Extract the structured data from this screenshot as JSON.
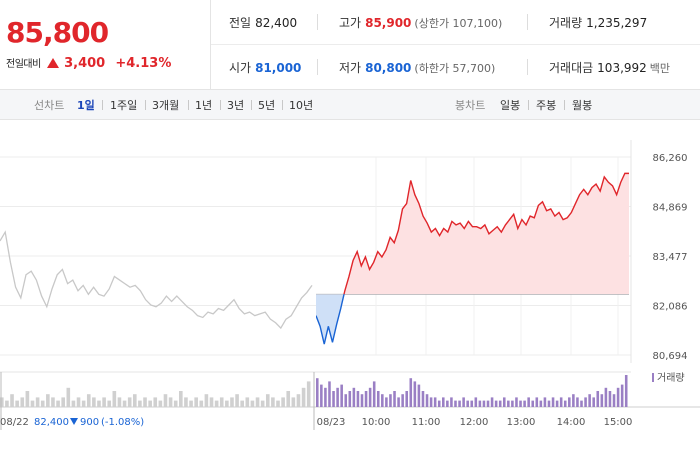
{
  "header": {
    "price": "85,800",
    "change_label": "전일대비",
    "change_value": "3,400",
    "change_pct": "+4.13%"
  },
  "summary": {
    "prev_close": {
      "label": "전일",
      "value": "82,400"
    },
    "high": {
      "label": "고가",
      "value": "85,900",
      "sub": "(상한가 107,100)"
    },
    "volume": {
      "label": "거래량",
      "value": "1,235,297"
    },
    "open": {
      "label": "시가",
      "value": "81,000"
    },
    "low": {
      "label": "저가",
      "value": "80,800",
      "sub": "(하한가 57,700)"
    },
    "amount": {
      "label": "거래대금",
      "value": "103,992",
      "unit": "백만"
    }
  },
  "period_tabs": {
    "line_label": "선차트",
    "line_items": [
      "1일",
      "1주일",
      "3개월",
      "1년",
      "3년",
      "5년",
      "10년"
    ],
    "active": "1일",
    "candle_label": "봉차트",
    "candle_items": [
      "일봉",
      "주봉",
      "월봉"
    ]
  },
  "colors": {
    "up": "#e0262b",
    "down": "#1a64d4",
    "prev_day_line": "#c8c8c8",
    "up_fill": "#fde1e2",
    "down_fill": "#cfe0f7",
    "volume_prev": "#d0d0d0",
    "volume_today": "#9a7fc4"
  },
  "chart_data": {
    "type": "line",
    "yticks": [
      "86,260",
      "84,869",
      "83,477",
      "82,086",
      "80,694"
    ],
    "ylim": [
      80694,
      86260
    ],
    "prev_close": 82400,
    "xticks": [
      "08/23",
      "10:00",
      "11:00",
      "12:00",
      "13:00",
      "14:00",
      "15:00"
    ],
    "prev_day": {
      "label": "08/22",
      "close": "82,400",
      "change": "900",
      "change_pct": "(-1.08%)",
      "prices": [
        83900,
        84150,
        83300,
        82600,
        82300,
        82950,
        83050,
        82800,
        82350,
        82050,
        82550,
        82950,
        83100,
        82700,
        82800,
        82500,
        82650,
        82400,
        82600,
        82400,
        82350,
        82550,
        82900,
        82800,
        82700,
        82600,
        82650,
        82500,
        82250,
        82100,
        82050,
        82150,
        82350,
        82200,
        82350,
        82200,
        82050,
        81950,
        81800,
        81750,
        81900,
        81850,
        82000,
        81950,
        82100,
        82250,
        82000,
        81850,
        81900,
        81800,
        81850,
        81900,
        81700,
        81600,
        81450,
        81700,
        81800,
        82050,
        82300,
        82450,
        82650
      ]
    },
    "today": {
      "label": "08/23",
      "prices": [
        81800,
        81500,
        81000,
        81500,
        81050,
        81550,
        82000,
        82500,
        82900,
        83350,
        83600,
        83200,
        83450,
        83100,
        83300,
        83600,
        83450,
        83650,
        84000,
        83850,
        84200,
        84800,
        84950,
        85600,
        85200,
        84950,
        84600,
        84400,
        84150,
        84250,
        84050,
        84250,
        84150,
        84450,
        84350,
        84400,
        84250,
        84450,
        84300,
        84300,
        84250,
        84350,
        84100,
        84200,
        84300,
        84150,
        84350,
        84500,
        84650,
        84250,
        84500,
        84350,
        84600,
        84550,
        84900,
        85000,
        84750,
        84800,
        84600,
        84700,
        84500,
        84550,
        84700,
        84950,
        85200,
        85350,
        85200,
        85400,
        85500,
        85300,
        85700,
        85550,
        85450,
        85200,
        85550,
        85800,
        85800
      ]
    },
    "volume_label": "거래량",
    "volume_prev": [
      3,
      2,
      4,
      2,
      3,
      5,
      2,
      3,
      2,
      4,
      3,
      2,
      3,
      6,
      2,
      3,
      2,
      4,
      3,
      2,
      3,
      2,
      5,
      3,
      2,
      3,
      4,
      2,
      3,
      2,
      3,
      2,
      4,
      3,
      2,
      5,
      3,
      2,
      3,
      2,
      4,
      3,
      2,
      3,
      2,
      3,
      4,
      2,
      3,
      2,
      3,
      2,
      4,
      3,
      2,
      3,
      5,
      3,
      4,
      6,
      8
    ],
    "volume_today": [
      9,
      7,
      6,
      8,
      5,
      6,
      7,
      4,
      5,
      6,
      5,
      4,
      5,
      6,
      8,
      5,
      4,
      3,
      4,
      5,
      3,
      4,
      5,
      9,
      8,
      7,
      5,
      4,
      3,
      3,
      2,
      3,
      2,
      3,
      2,
      2,
      3,
      2,
      2,
      3,
      2,
      2,
      2,
      3,
      2,
      2,
      3,
      2,
      2,
      3,
      2,
      2,
      3,
      2,
      3,
      2,
      3,
      2,
      3,
      2,
      3,
      2,
      3,
      4,
      3,
      2,
      3,
      4,
      3,
      5,
      4,
      6,
      5,
      4,
      6,
      7,
      10
    ]
  }
}
